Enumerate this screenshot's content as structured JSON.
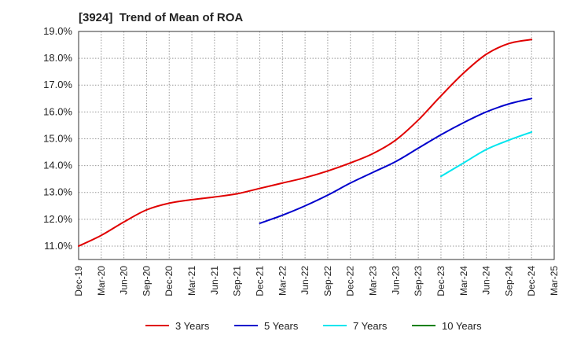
{
  "chart_data": {
    "type": "line",
    "title": "[3924]  Trend of Mean of ROA",
    "xlabel": "",
    "ylabel": "",
    "y_unit": "%",
    "ylim": [
      10.5,
      19.0
    ],
    "yticks": [
      11.0,
      12.0,
      13.0,
      14.0,
      15.0,
      16.0,
      17.0,
      18.0,
      19.0
    ],
    "ytick_labels": [
      "11.0%",
      "12.0%",
      "13.0%",
      "14.0%",
      "15.0%",
      "16.0%",
      "17.0%",
      "18.0%",
      "19.0%"
    ],
    "categories": [
      "Dec-19",
      "Mar-20",
      "Jun-20",
      "Sep-20",
      "Dec-20",
      "Mar-21",
      "Jun-21",
      "Sep-21",
      "Dec-21",
      "Mar-22",
      "Jun-22",
      "Sep-22",
      "Dec-22",
      "Mar-23",
      "Jun-23",
      "Sep-23",
      "Dec-23",
      "Mar-24",
      "Jun-24",
      "Sep-24",
      "Dec-24",
      "Mar-25"
    ],
    "grid": true,
    "legend_position": "bottom",
    "series": [
      {
        "name": "3 Years",
        "color": "#e00000",
        "values": [
          11.0,
          11.4,
          11.9,
          12.35,
          12.6,
          12.73,
          12.83,
          12.95,
          13.15,
          13.35,
          13.55,
          13.8,
          14.1,
          14.45,
          14.95,
          15.7,
          16.6,
          17.45,
          18.15,
          18.55,
          18.7,
          null
        ]
      },
      {
        "name": "5 Years",
        "color": "#0000cc",
        "values": [
          null,
          null,
          null,
          null,
          null,
          null,
          null,
          null,
          11.85,
          12.15,
          12.5,
          12.9,
          13.35,
          13.75,
          14.15,
          14.65,
          15.15,
          15.6,
          16.0,
          16.3,
          16.5,
          null
        ]
      },
      {
        "name": "7 Years",
        "color": "#00e5ee",
        "values": [
          null,
          null,
          null,
          null,
          null,
          null,
          null,
          null,
          null,
          null,
          null,
          null,
          null,
          null,
          null,
          null,
          13.6,
          14.1,
          14.6,
          14.95,
          15.25,
          null
        ]
      },
      {
        "name": "10 Years",
        "color": "#008000",
        "values": [
          null,
          null,
          null,
          null,
          null,
          null,
          null,
          null,
          null,
          null,
          null,
          null,
          null,
          null,
          null,
          null,
          null,
          null,
          null,
          null,
          null,
          null
        ]
      }
    ]
  }
}
